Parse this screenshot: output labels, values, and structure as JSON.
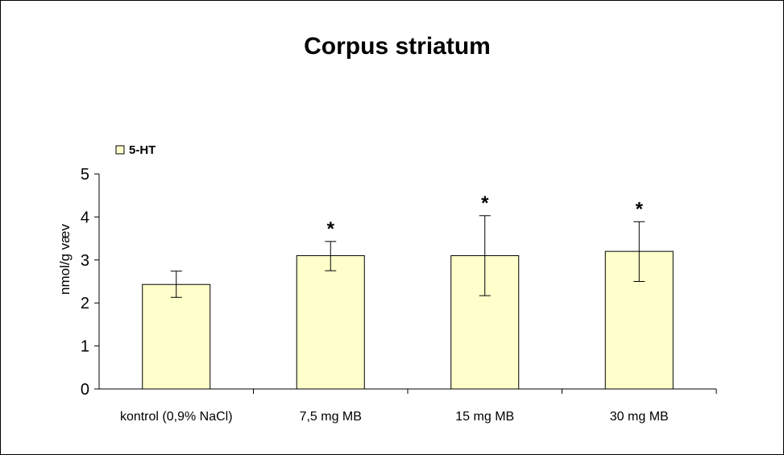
{
  "chart_data": {
    "type": "bar",
    "title": "Corpus striatum",
    "ylabel": "nmol/g væv",
    "xlabel": "",
    "ylim": [
      0,
      5
    ],
    "yticks": [
      "0",
      "1",
      "2",
      "3",
      "4",
      "5"
    ],
    "categories": [
      "kontrol (0,9% NaCl)",
      "7,5 mg MB",
      "15 mg MB",
      "30 mg MB"
    ],
    "series": [
      {
        "name": "5-HT",
        "values": [
          2.43,
          3.1,
          3.1,
          3.2
        ],
        "error_low": [
          2.13,
          2.75,
          2.17,
          2.5
        ],
        "error_high": [
          2.74,
          3.43,
          4.03,
          3.89
        ],
        "color": "#ffffcc"
      }
    ],
    "annotations": [
      "",
      "*",
      "*",
      "*"
    ],
    "legend_position": "top-left",
    "grid": false
  }
}
